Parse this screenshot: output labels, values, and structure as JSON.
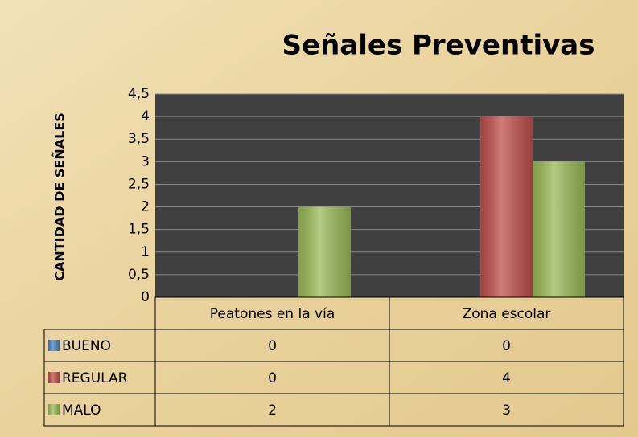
{
  "chart_data": {
    "type": "bar",
    "title": "Señales Preventivas",
    "ylabel": "CANTIDAD DE SEÑALES",
    "categories": [
      "Peatones en la vía",
      "Zona escolar"
    ],
    "series": [
      {
        "name": "BUENO",
        "color": "#4f81bd",
        "values": [
          0,
          0
        ]
      },
      {
        "name": "REGULAR",
        "color": "#c0504d",
        "values": [
          0,
          4
        ]
      },
      {
        "name": "MALO",
        "color": "#9bbb59",
        "values": [
          2,
          3
        ]
      }
    ],
    "ylim": [
      0,
      4.5
    ],
    "yticks": [
      0,
      {
        "value": 0.5,
        "label": "0,5"
      },
      1,
      {
        "value": 1.5,
        "label": "1,5"
      },
      2,
      {
        "value": 2.5,
        "label": "2,5"
      },
      3,
      {
        "value": 3.5,
        "label": "3,5"
      },
      4,
      {
        "value": 4.5,
        "label": "4,5"
      }
    ],
    "grid": true,
    "data_table": true
  }
}
